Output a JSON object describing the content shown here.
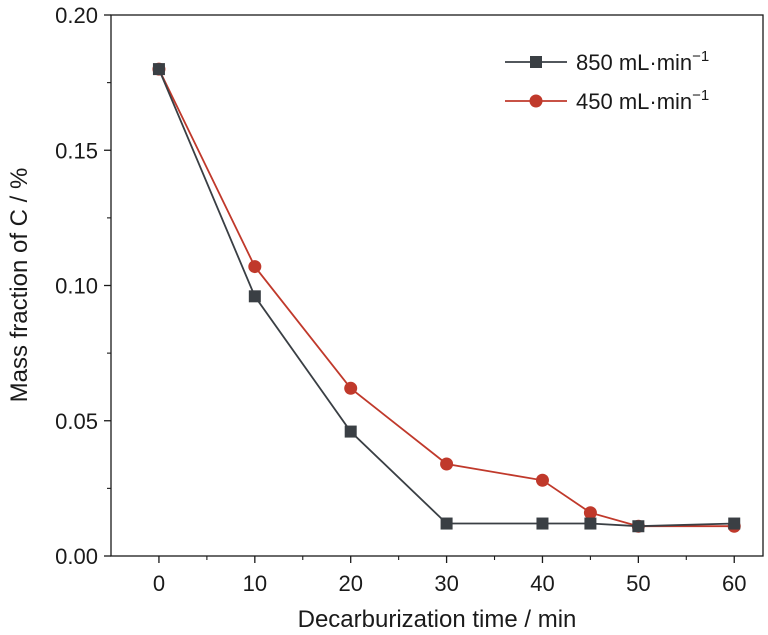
{
  "chart_data": {
    "type": "line",
    "title": "",
    "xlabel": "Decarburization time / min",
    "ylabel": "Mass fraction of C / %",
    "xlim": [
      -5,
      63
    ],
    "ylim": [
      0.0,
      0.2
    ],
    "xticks": [
      0,
      10,
      20,
      30,
      40,
      50,
      60
    ],
    "yticks": [
      0.0,
      0.05,
      0.1,
      0.15,
      0.2
    ],
    "xtick_labels": [
      "0",
      "10",
      "20",
      "30",
      "40",
      "50",
      "60"
    ],
    "ytick_labels": [
      "0.00",
      "0.05",
      "0.10",
      "0.15",
      "0.20"
    ],
    "grid": false,
    "legend_position": "top-right",
    "series": [
      {
        "name": "850 mL·min",
        "name_superscript": "−1",
        "color": "#3a3f44",
        "marker": "square",
        "x": [
          0,
          10,
          20,
          30,
          40,
          45,
          50,
          60
        ],
        "y": [
          0.18,
          0.096,
          0.046,
          0.012,
          0.012,
          0.012,
          0.011,
          0.012
        ]
      },
      {
        "name": "450 mL·min",
        "name_superscript": "−1",
        "color": "#c0392b",
        "marker": "circle",
        "x": [
          0,
          10,
          20,
          30,
          40,
          45,
          50,
          60
        ],
        "y": [
          0.18,
          0.107,
          0.062,
          0.034,
          0.028,
          0.016,
          0.011,
          0.011
        ]
      }
    ]
  }
}
